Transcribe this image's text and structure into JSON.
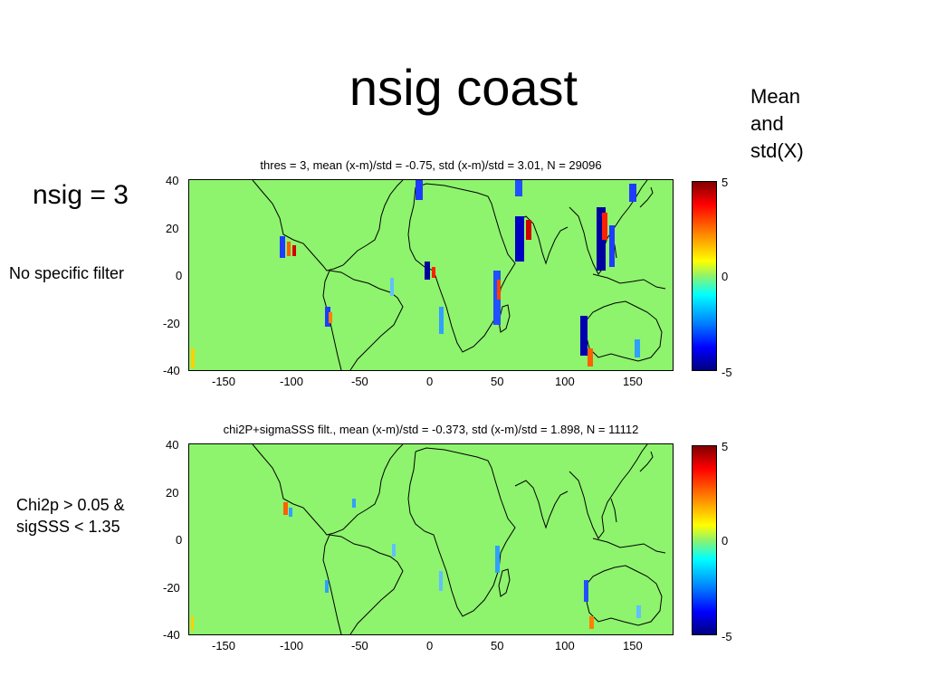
{
  "slide": {
    "title": "nsig coast",
    "note": [
      "Mean",
      "and",
      "std(X)"
    ],
    "row1_label": "nsig = 3",
    "row1_sub": "No specific  filter",
    "row2_label": [
      "Chi2p > 0.05 &",
      "sigSSS < 1.35"
    ]
  },
  "colors": {
    "zero": "#8ef36d",
    "coast": "#000000"
  },
  "maps": [
    {
      "title": "thres = 3, mean (x-m)/std = -0.75, std (x-m)/std = 3.01, N = 29096",
      "x_ticks": [
        "-150",
        "-100",
        "-50",
        "0",
        "50",
        "100",
        "150"
      ],
      "y_ticks": [
        "40",
        "20",
        "0",
        "-20",
        "-40"
      ],
      "colorbar_ticks": [
        "5",
        "0",
        "-5"
      ]
    },
    {
      "title": "chi2P+sigmaSSS filt., mean (x-m)/std = -0.373, std (x-m)/std = 1.898, N = 11112",
      "x_ticks": [
        "-150",
        "-100",
        "-50",
        "0",
        "50",
        "100",
        "150"
      ],
      "y_ticks": [
        "40",
        "20",
        "0",
        "-20",
        "-40"
      ],
      "colorbar_ticks": [
        "5",
        "0",
        "-5"
      ]
    }
  ],
  "chart_data": {
    "type": "heatmap",
    "x_range": [
      -180,
      180
    ],
    "y_range": [
      -40,
      40
    ],
    "color_range": [
      -5,
      5
    ],
    "panels": [
      {
        "title": "thres = 3, mean (x-m)/std = -0.75, std (x-m)/std = 3.01, N = 29096",
        "mean": -0.75,
        "std": 3.01,
        "N": 29096,
        "threshold": 3
      },
      {
        "title": "chi2P+sigmaSSS filt., mean (x-m)/std = -0.373, std (x-m)/std = 1.898, N = 11112",
        "mean": -0.373,
        "std": 1.898,
        "N": 11112
      }
    ]
  }
}
